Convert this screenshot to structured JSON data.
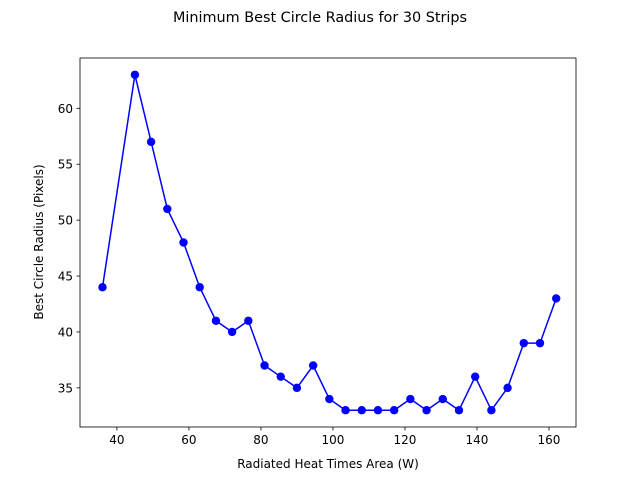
{
  "chart_data": {
    "type": "line",
    "title": "Minimum Best Circle Radius for 30 Strips",
    "xlabel": "Radiated Heat Times Area (W)",
    "ylabel": "Best Circle Radius (Pixels)",
    "xlim": [
      29.75,
      167.5
    ],
    "ylim": [
      31.5,
      64.5
    ],
    "xticks": [
      40,
      60,
      80,
      100,
      120,
      140,
      160
    ],
    "yticks": [
      35,
      40,
      45,
      50,
      55,
      60
    ],
    "grid": false,
    "legend": "none",
    "series": [
      {
        "color": "#0000ff",
        "marker": "circle",
        "x": [
          36,
          45,
          49.5,
          54,
          58.5,
          63,
          67.5,
          72,
          76.5,
          81,
          85.5,
          90,
          94.5,
          99,
          103.5,
          108,
          112.5,
          117,
          121.5,
          126,
          130.5,
          135,
          139.5,
          144,
          148.5,
          153,
          157.5,
          162
        ],
        "y": [
          44,
          63,
          57,
          51,
          48,
          44,
          41,
          40,
          41,
          37,
          36,
          35,
          37,
          34,
          33,
          33,
          33,
          33,
          34,
          33,
          34,
          33,
          36,
          33,
          35,
          39,
          39,
          43
        ]
      }
    ]
  }
}
